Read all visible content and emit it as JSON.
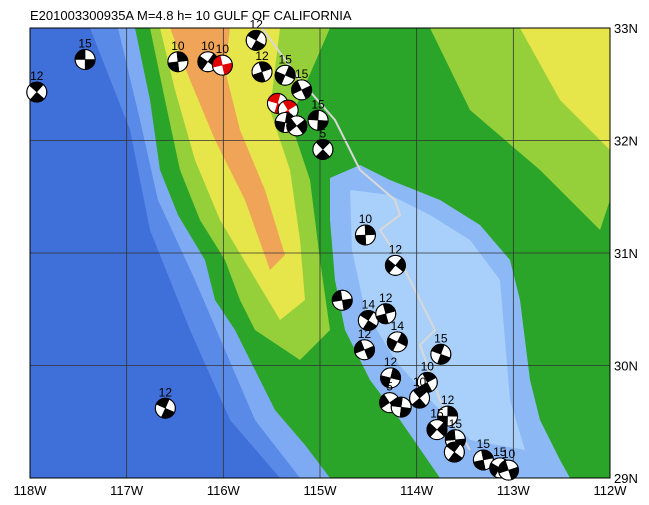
{
  "map": {
    "title": "E201003300935A M=4.8 h= 10 GULF OF CALIFORNIA",
    "lon_ticks": [
      {
        "value": -118,
        "label": "118W"
      },
      {
        "value": -117,
        "label": "117W"
      },
      {
        "value": -116,
        "label": "116W"
      },
      {
        "value": -115,
        "label": "115W"
      },
      {
        "value": -114,
        "label": "114W"
      },
      {
        "value": -113,
        "label": "113W"
      },
      {
        "value": -112,
        "label": "112W"
      }
    ],
    "lat_ticks": [
      {
        "value": 33,
        "label": "33N"
      },
      {
        "value": 32,
        "label": "32N"
      },
      {
        "value": 31,
        "label": "31N"
      },
      {
        "value": 30,
        "label": "30N"
      },
      {
        "value": 29,
        "label": "29N"
      }
    ],
    "events": [
      {
        "lon": -117.43,
        "lat": 32.72,
        "depth": "15",
        "color": "#000000"
      },
      {
        "lon": -117.93,
        "lat": 32.43,
        "depth": "12",
        "color": "#000000"
      },
      {
        "lon": -116.47,
        "lat": 32.7,
        "depth": "10",
        "color": "#000000"
      },
      {
        "lon": -116.16,
        "lat": 32.7,
        "depth": "10",
        "color": "#000000"
      },
      {
        "lon": -116.01,
        "lat": 32.67,
        "depth": "10",
        "color": "#e00000"
      },
      {
        "lon": -115.66,
        "lat": 32.89,
        "depth": "12",
        "color": "#000000"
      },
      {
        "lon": -115.6,
        "lat": 32.61,
        "depth": "12",
        "color": "#000000"
      },
      {
        "lon": -115.36,
        "lat": 32.58,
        "depth": "15",
        "color": "#000000"
      },
      {
        "lon": -115.19,
        "lat": 32.45,
        "depth": "15",
        "color": "#000000"
      },
      {
        "lon": -115.44,
        "lat": 32.33,
        "color": "#e00000"
      },
      {
        "lon": -115.33,
        "lat": 32.27,
        "color": "#e00000"
      },
      {
        "lon": -115.36,
        "lat": 32.16,
        "color": "#000000"
      },
      {
        "lon": -115.24,
        "lat": 32.13,
        "color": "#000000"
      },
      {
        "lon": -115.02,
        "lat": 32.18,
        "depth": "15",
        "color": "#000000"
      },
      {
        "lon": -114.97,
        "lat": 31.92,
        "depth": "5",
        "color": "#000000"
      },
      {
        "lon": -114.53,
        "lat": 31.16,
        "depth": "10",
        "color": "#000000"
      },
      {
        "lon": -114.22,
        "lat": 30.89,
        "depth": "12",
        "color": "#000000"
      },
      {
        "lon": -114.77,
        "lat": 30.58,
        "color": "#000000"
      },
      {
        "lon": -114.5,
        "lat": 30.4,
        "depth": "14",
        "color": "#000000"
      },
      {
        "lon": -114.32,
        "lat": 30.46,
        "depth": "12",
        "color": "#000000"
      },
      {
        "lon": -114.2,
        "lat": 30.21,
        "depth": "14",
        "color": "#000000"
      },
      {
        "lon": -114.54,
        "lat": 30.14,
        "depth": "12",
        "color": "#000000"
      },
      {
        "lon": -113.75,
        "lat": 30.1,
        "depth": "15",
        "color": "#000000"
      },
      {
        "lon": -113.89,
        "lat": 29.85,
        "depth": "10",
        "color": "#000000"
      },
      {
        "lon": -114.27,
        "lat": 29.89,
        "depth": "12",
        "color": "#000000"
      },
      {
        "lon": -114.28,
        "lat": 29.67,
        "depth": "5",
        "color": "#000000"
      },
      {
        "lon": -114.16,
        "lat": 29.63,
        "color": "#000000"
      },
      {
        "lon": -113.97,
        "lat": 29.71,
        "depth": "10",
        "color": "#000000"
      },
      {
        "lon": -113.68,
        "lat": 29.55,
        "depth": "12",
        "color": "#000000"
      },
      {
        "lon": -113.79,
        "lat": 29.43,
        "depth": "15",
        "color": "#000000"
      },
      {
        "lon": -113.6,
        "lat": 29.34,
        "depth": "15",
        "color": "#000000"
      },
      {
        "lon": -113.61,
        "lat": 29.23,
        "color": "#000000"
      },
      {
        "lon": -113.31,
        "lat": 29.16,
        "depth": "15",
        "color": "#000000"
      },
      {
        "lon": -113.14,
        "lat": 29.09,
        "depth": "15",
        "color": "#000000"
      },
      {
        "lon": -113.05,
        "lat": 29.07,
        "depth": "10",
        "color": "#000000"
      },
      {
        "lon": -116.6,
        "lat": 29.62,
        "depth": "12",
        "color": "#000000"
      }
    ]
  }
}
